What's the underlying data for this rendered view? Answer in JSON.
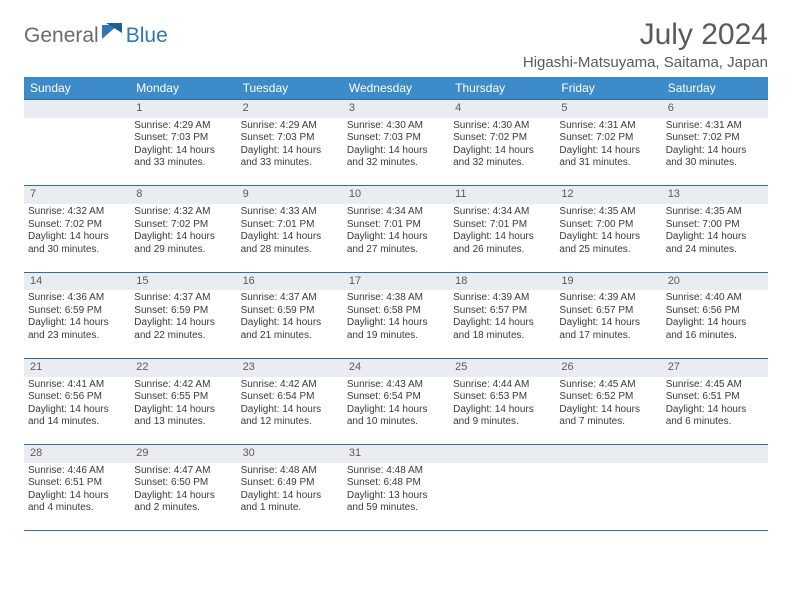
{
  "logo": {
    "part1": "General",
    "part2": "Blue"
  },
  "title": "July 2024",
  "location": "Higashi-Matsuyama, Saitama, Japan",
  "colors": {
    "header_bg": "#3d8bc8",
    "border": "#2f6da3",
    "daynum_bg": "#e9edf1",
    "text": "#3a3a3a",
    "title_text": "#5a5a5a",
    "logo_gray": "#6b6b6b",
    "logo_blue": "#2f78b7"
  },
  "day_headers": [
    "Sunday",
    "Monday",
    "Tuesday",
    "Wednesday",
    "Thursday",
    "Friday",
    "Saturday"
  ],
  "weeks": [
    {
      "nums": [
        "",
        "1",
        "2",
        "3",
        "4",
        "5",
        "6"
      ],
      "cells": [
        null,
        {
          "sunrise": "4:29 AM",
          "sunset": "7:03 PM",
          "daylight": "14 hours and 33 minutes."
        },
        {
          "sunrise": "4:29 AM",
          "sunset": "7:03 PM",
          "daylight": "14 hours and 33 minutes."
        },
        {
          "sunrise": "4:30 AM",
          "sunset": "7:03 PM",
          "daylight": "14 hours and 32 minutes."
        },
        {
          "sunrise": "4:30 AM",
          "sunset": "7:02 PM",
          "daylight": "14 hours and 32 minutes."
        },
        {
          "sunrise": "4:31 AM",
          "sunset": "7:02 PM",
          "daylight": "14 hours and 31 minutes."
        },
        {
          "sunrise": "4:31 AM",
          "sunset": "7:02 PM",
          "daylight": "14 hours and 30 minutes."
        }
      ]
    },
    {
      "nums": [
        "7",
        "8",
        "9",
        "10",
        "11",
        "12",
        "13"
      ],
      "cells": [
        {
          "sunrise": "4:32 AM",
          "sunset": "7:02 PM",
          "daylight": "14 hours and 30 minutes."
        },
        {
          "sunrise": "4:32 AM",
          "sunset": "7:02 PM",
          "daylight": "14 hours and 29 minutes."
        },
        {
          "sunrise": "4:33 AM",
          "sunset": "7:01 PM",
          "daylight": "14 hours and 28 minutes."
        },
        {
          "sunrise": "4:34 AM",
          "sunset": "7:01 PM",
          "daylight": "14 hours and 27 minutes."
        },
        {
          "sunrise": "4:34 AM",
          "sunset": "7:01 PM",
          "daylight": "14 hours and 26 minutes."
        },
        {
          "sunrise": "4:35 AM",
          "sunset": "7:00 PM",
          "daylight": "14 hours and 25 minutes."
        },
        {
          "sunrise": "4:35 AM",
          "sunset": "7:00 PM",
          "daylight": "14 hours and 24 minutes."
        }
      ]
    },
    {
      "nums": [
        "14",
        "15",
        "16",
        "17",
        "18",
        "19",
        "20"
      ],
      "cells": [
        {
          "sunrise": "4:36 AM",
          "sunset": "6:59 PM",
          "daylight": "14 hours and 23 minutes."
        },
        {
          "sunrise": "4:37 AM",
          "sunset": "6:59 PM",
          "daylight": "14 hours and 22 minutes."
        },
        {
          "sunrise": "4:37 AM",
          "sunset": "6:59 PM",
          "daylight": "14 hours and 21 minutes."
        },
        {
          "sunrise": "4:38 AM",
          "sunset": "6:58 PM",
          "daylight": "14 hours and 19 minutes."
        },
        {
          "sunrise": "4:39 AM",
          "sunset": "6:57 PM",
          "daylight": "14 hours and 18 minutes."
        },
        {
          "sunrise": "4:39 AM",
          "sunset": "6:57 PM",
          "daylight": "14 hours and 17 minutes."
        },
        {
          "sunrise": "4:40 AM",
          "sunset": "6:56 PM",
          "daylight": "14 hours and 16 minutes."
        }
      ]
    },
    {
      "nums": [
        "21",
        "22",
        "23",
        "24",
        "25",
        "26",
        "27"
      ],
      "cells": [
        {
          "sunrise": "4:41 AM",
          "sunset": "6:56 PM",
          "daylight": "14 hours and 14 minutes."
        },
        {
          "sunrise": "4:42 AM",
          "sunset": "6:55 PM",
          "daylight": "14 hours and 13 minutes."
        },
        {
          "sunrise": "4:42 AM",
          "sunset": "6:54 PM",
          "daylight": "14 hours and 12 minutes."
        },
        {
          "sunrise": "4:43 AM",
          "sunset": "6:54 PM",
          "daylight": "14 hours and 10 minutes."
        },
        {
          "sunrise": "4:44 AM",
          "sunset": "6:53 PM",
          "daylight": "14 hours and 9 minutes."
        },
        {
          "sunrise": "4:45 AM",
          "sunset": "6:52 PM",
          "daylight": "14 hours and 7 minutes."
        },
        {
          "sunrise": "4:45 AM",
          "sunset": "6:51 PM",
          "daylight": "14 hours and 6 minutes."
        }
      ]
    },
    {
      "nums": [
        "28",
        "29",
        "30",
        "31",
        "",
        "",
        ""
      ],
      "cells": [
        {
          "sunrise": "4:46 AM",
          "sunset": "6:51 PM",
          "daylight": "14 hours and 4 minutes."
        },
        {
          "sunrise": "4:47 AM",
          "sunset": "6:50 PM",
          "daylight": "14 hours and 2 minutes."
        },
        {
          "sunrise": "4:48 AM",
          "sunset": "6:49 PM",
          "daylight": "14 hours and 1 minute."
        },
        {
          "sunrise": "4:48 AM",
          "sunset": "6:48 PM",
          "daylight": "13 hours and 59 minutes."
        },
        null,
        null,
        null
      ]
    }
  ],
  "labels": {
    "sunrise": "Sunrise:",
    "sunset": "Sunset:",
    "daylight": "Daylight:"
  }
}
